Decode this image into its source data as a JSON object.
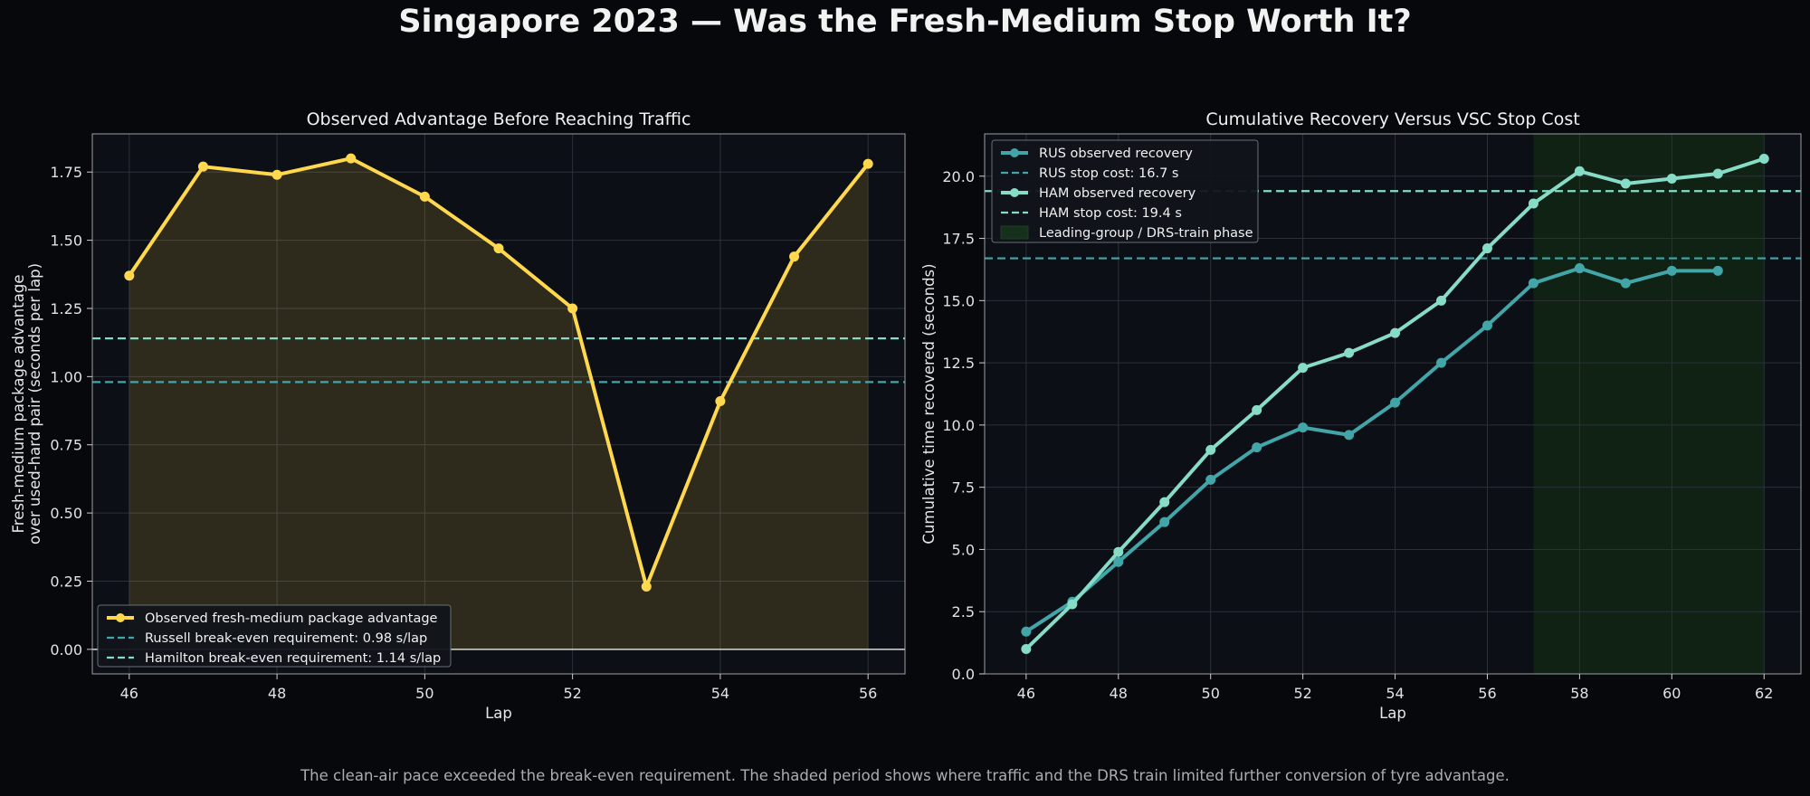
{
  "title": "Singapore 2023 — Was the Fresh-Medium Stop Worth It?",
  "footer": "The clean-air pace exceeded the break-even requirement. The shaded period shows where traffic and the DRS train limited further conversion of tyre advantage.",
  "colors": {
    "background": "#07080b",
    "plot_bg": "#0c1016",
    "yellow": "#ffd84d",
    "teal_dark": "#42a6a8",
    "teal_light": "#86dcc6",
    "green_shade": "#102414",
    "grid": "#2b3138"
  },
  "chart_data": [
    {
      "type": "line",
      "title": "Observed Advantage Before Reaching Traffic",
      "xlabel": "Lap",
      "ylabel": [
        "Fresh-medium package advantage",
        "over used-hard pair (seconds per lap)"
      ],
      "xlim": [
        45.5,
        56.5
      ],
      "ylim": [
        -0.09,
        1.89
      ],
      "xticks": [
        46,
        48,
        50,
        52,
        54,
        56
      ],
      "yticks": [
        0.0,
        0.25,
        0.5,
        0.75,
        1.0,
        1.25,
        1.5,
        1.75
      ],
      "series": [
        {
          "name": "Observed fresh-medium package advantage",
          "x": [
            46,
            47,
            48,
            49,
            50,
            51,
            52,
            53,
            54,
            55,
            56
          ],
          "y": [
            1.37,
            1.77,
            1.74,
            1.8,
            1.66,
            1.47,
            1.25,
            0.23,
            0.91,
            1.44,
            1.78
          ]
        }
      ],
      "hlines": [
        {
          "name": "Russell break-even requirement: 0.98 s/lap",
          "y": 0.98
        },
        {
          "name": "Hamilton break-even requirement: 1.14 s/lap",
          "y": 1.14
        }
      ],
      "legend_position": "lower-left",
      "grid": true
    },
    {
      "type": "line",
      "title": "Cumulative Recovery Versus VSC Stop Cost",
      "xlabel": "Lap",
      "ylabel": [
        "Cumulative time recovered (seconds)"
      ],
      "xlim": [
        45.1,
        62.8
      ],
      "ylim": [
        0,
        21.7
      ],
      "xticks": [
        46,
        48,
        50,
        52,
        54,
        56,
        58,
        60,
        62
      ],
      "yticks": [
        0.0,
        2.5,
        5.0,
        7.5,
        10.0,
        12.5,
        15.0,
        17.5,
        20.0
      ],
      "series": [
        {
          "name": "RUS observed recovery",
          "x": [
            46,
            47,
            48,
            49,
            50,
            51,
            52,
            53,
            54,
            55,
            56,
            57,
            58,
            59,
            60,
            61
          ],
          "y": [
            1.7,
            2.9,
            4.5,
            6.1,
            7.8,
            9.1,
            9.9,
            9.6,
            10.9,
            12.5,
            14.0,
            15.7,
            16.3,
            15.7,
            16.2,
            16.2
          ]
        },
        {
          "name": "HAM observed recovery",
          "x": [
            46,
            47,
            48,
            49,
            50,
            51,
            52,
            53,
            54,
            55,
            56,
            57,
            58,
            59,
            60,
            61,
            62
          ],
          "y": [
            1.0,
            2.8,
            4.9,
            6.9,
            9.0,
            10.6,
            12.3,
            12.9,
            13.7,
            15.0,
            17.1,
            18.9,
            20.2,
            19.7,
            19.9,
            20.1,
            20.7
          ]
        }
      ],
      "hlines": [
        {
          "name": "RUS stop cost: 16.7 s",
          "y": 16.7
        },
        {
          "name": "HAM stop cost: 19.4 s",
          "y": 19.4
        }
      ],
      "shaded_region": {
        "name": "Leading-group / DRS-train phase",
        "x": [
          57,
          62
        ]
      },
      "legend_position": "top-left",
      "grid": true
    }
  ]
}
